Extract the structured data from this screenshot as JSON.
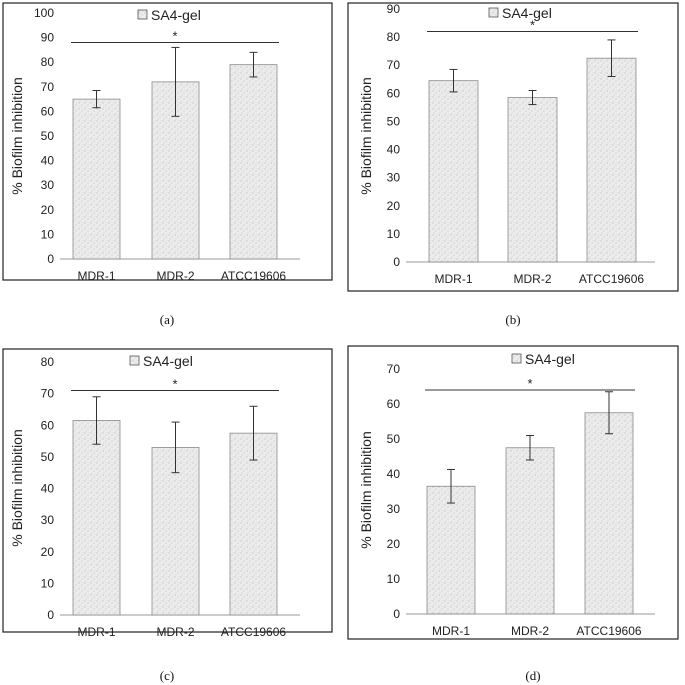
{
  "chart_data": [
    {
      "type": "bar",
      "panel": "(a)",
      "ylabel": "% Biofilm inhibition",
      "legend": "SA4-gel",
      "significance": "*",
      "categories": [
        "MDR-1",
        "MDR-2",
        "ATCC19606"
      ],
      "series": [
        {
          "name": "SA4-gel",
          "values": [
            65,
            72,
            79
          ],
          "errors": [
            3.5,
            14,
            5
          ]
        }
      ],
      "ylim": [
        0,
        100
      ],
      "yticks": [
        0,
        10,
        20,
        30,
        40,
        50,
        60,
        70,
        80,
        90,
        100
      ],
      "sig_y": 88
    },
    {
      "type": "bar",
      "panel": "(b)",
      "ylabel": "% Biofilm inhibition",
      "legend": "SA4-gel",
      "significance": "*",
      "categories": [
        "MDR-1",
        "MDR-2",
        "ATCC19606"
      ],
      "series": [
        {
          "name": "SA4-gel",
          "values": [
            64.5,
            58.5,
            72.5
          ],
          "errors": [
            4,
            2.5,
            6.5
          ]
        }
      ],
      "ylim": [
        0,
        90
      ],
      "yticks": [
        0,
        10,
        20,
        30,
        40,
        50,
        60,
        70,
        80,
        90
      ],
      "sig_y": 82
    },
    {
      "type": "bar",
      "panel": "(c)",
      "ylabel": "% Biofilm inhibition",
      "legend": "SA4-gel",
      "significance": "*",
      "categories": [
        "MDR-1",
        "MDR-2",
        "ATCC19606"
      ],
      "series": [
        {
          "name": "SA4-gel",
          "values": [
            61.5,
            53,
            57.5
          ],
          "errors": [
            7.5,
            8,
            8.5
          ]
        }
      ],
      "ylim": [
        0,
        80
      ],
      "yticks": [
        0,
        10,
        20,
        30,
        40,
        50,
        60,
        70,
        80
      ],
      "sig_y": 71
    },
    {
      "type": "bar",
      "panel": "(d)",
      "ylabel": "% Biofilm inhibition",
      "legend": "SA4-gel",
      "significance": "*",
      "categories": [
        "MDR-1",
        "MDR-2",
        "ATCC19606"
      ],
      "series": [
        {
          "name": "SA4-gel",
          "values": [
            36.5,
            47.5,
            57.5
          ],
          "errors": [
            4.8,
            3.5,
            6
          ]
        }
      ],
      "ylim": [
        0,
        70
      ],
      "yticks": [
        0,
        10,
        20,
        30,
        40,
        50,
        60,
        70
      ],
      "sig_y": 64
    }
  ]
}
